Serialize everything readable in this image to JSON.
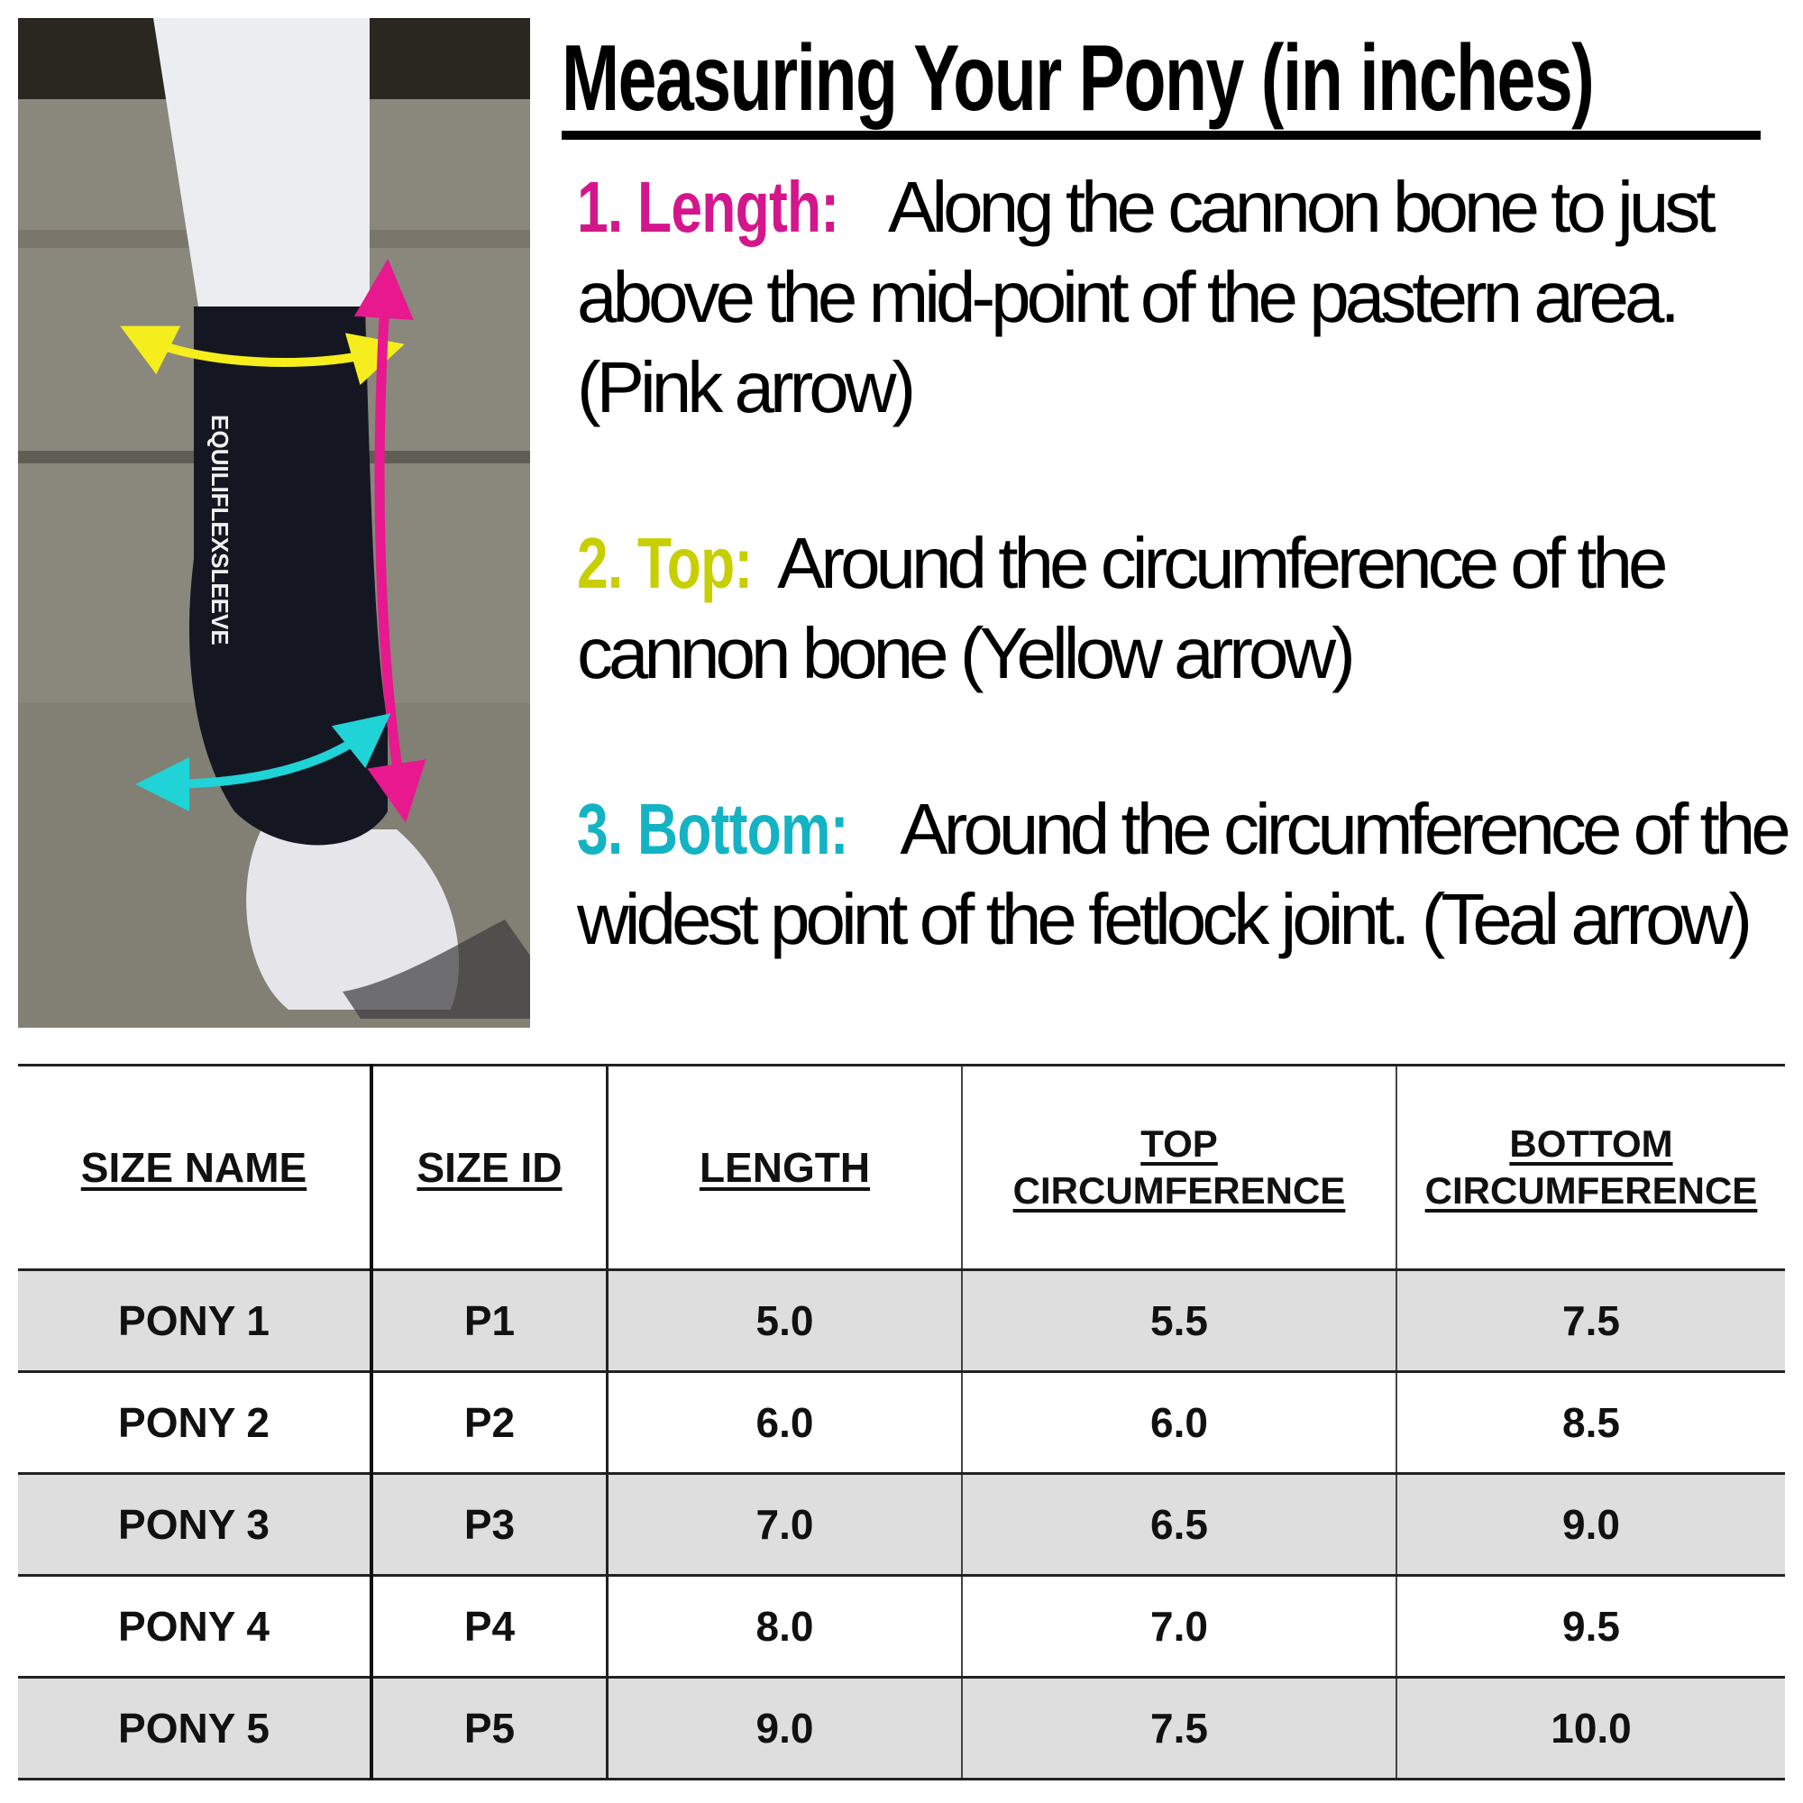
{
  "title": "Measuring Your Pony  (in inches)",
  "instructions": [
    {
      "label": "1. Length:",
      "color": "#d4168c",
      "lines": [
        "Along the cannon bone to just",
        "above the mid-point of the pastern area.",
        "(Pink arrow)"
      ]
    },
    {
      "label": "2. Top:",
      "color": "#c8cf00",
      "lines": [
        "Around the circumference of the",
        "cannon bone (Yellow arrow)"
      ]
    },
    {
      "label": "3. Bottom:",
      "color": "#13b3c4",
      "lines": [
        "Around the circumference of the",
        "widest point of the fetlock joint.  (Teal arrow)"
      ]
    }
  ],
  "photo": {
    "logo_text": "EQUILIFLEXSLEEVE",
    "arrow_colors": {
      "length": "#e8188f",
      "top": "#f5ee1c",
      "bottom": "#1fd3d6"
    }
  },
  "table": {
    "headers": [
      {
        "l1": "SIZE NAME"
      },
      {
        "l1": "SIZE ID"
      },
      {
        "l1": "LENGTH"
      },
      {
        "l1": "TOP",
        "l2": "CIRCUMFERENCE"
      },
      {
        "l1": "BOTTOM",
        "l2": "CIRCUMFERENCE"
      }
    ],
    "rows": [
      [
        "PONY 1",
        "P1",
        "5.0",
        "5.5",
        "7.5"
      ],
      [
        "PONY 2",
        "P2",
        "6.0",
        "6.0",
        "8.5"
      ],
      [
        "PONY 3",
        "P3",
        "7.0",
        "6.5",
        "9.0"
      ],
      [
        "PONY 4",
        "P4",
        "8.0",
        "7.0",
        "9.5"
      ],
      [
        "PONY 5",
        "P5",
        "9.0",
        "7.5",
        "10.0"
      ]
    ]
  }
}
